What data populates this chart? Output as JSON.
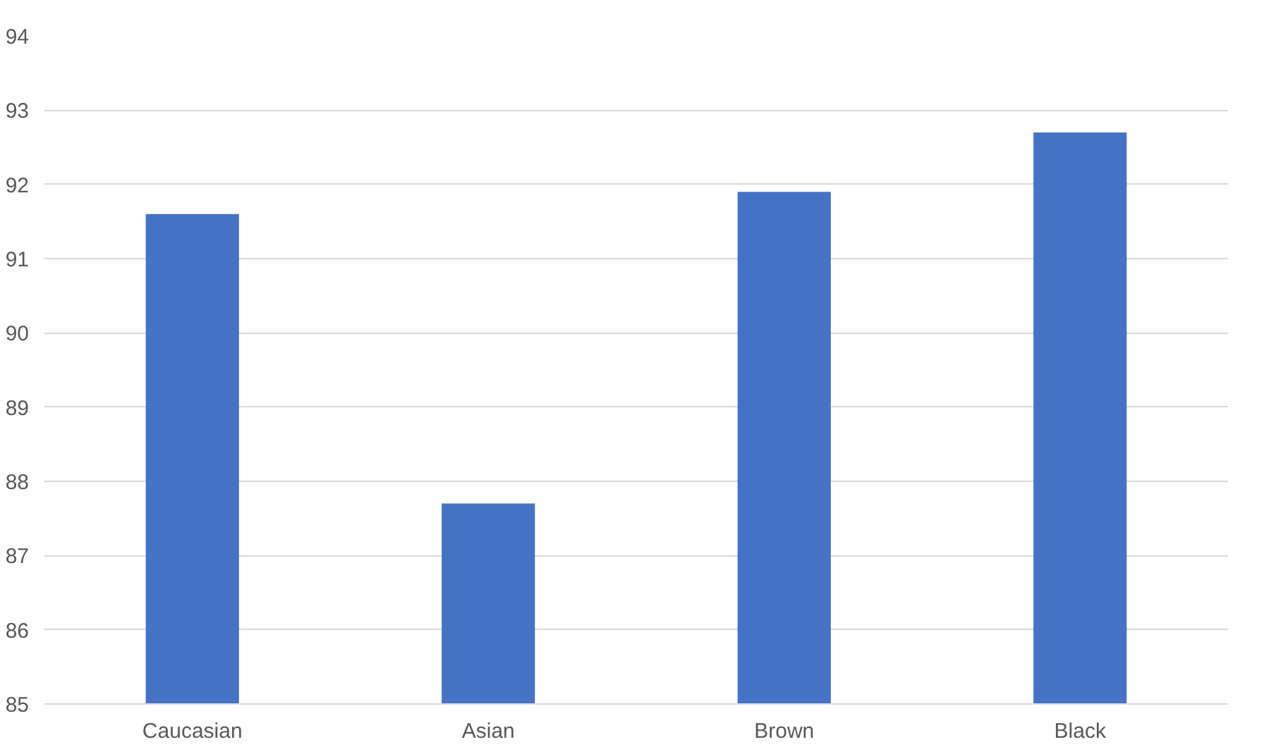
{
  "chart_data": {
    "type": "bar",
    "categories": [
      "Caucasian",
      "Asian",
      "Brown",
      "Black"
    ],
    "values": [
      91.6,
      87.7,
      91.9,
      92.7
    ],
    "color": "#4472c4",
    "ylim": [
      85,
      94
    ],
    "yticks": [
      85,
      86,
      87,
      88,
      89,
      90,
      91,
      92,
      93,
      94
    ],
    "grid": "y"
  }
}
